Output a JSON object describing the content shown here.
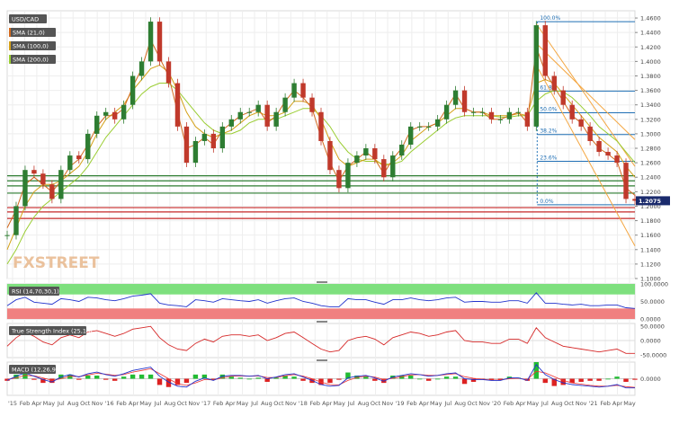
{
  "chart_data": {
    "type": "line",
    "symbol": "USD/CAD",
    "last_price": "1.2075",
    "x_labels": [
      "'15",
      "Feb",
      "Apr",
      "May",
      "Jul",
      "Aug",
      "Oct",
      "Nov",
      "'16",
      "Feb",
      "Apr",
      "May",
      "Jul",
      "Aug",
      "Oct",
      "Nov",
      "'17",
      "Feb",
      "Apr",
      "May",
      "Jul",
      "Aug",
      "Oct",
      "Nov",
      "'18",
      "Feb",
      "Apr",
      "May",
      "Jul",
      "Aug",
      "Oct",
      "Nov",
      "'19",
      "Feb",
      "Apr",
      "May",
      "Jul",
      "Aug",
      "Oct",
      "Nov",
      "'20",
      "Feb",
      "Apr",
      "May",
      "Jul",
      "Aug",
      "Oct",
      "Nov",
      "'21",
      "Feb",
      "Apr",
      "May"
    ],
    "main_panel": {
      "y_ticks": [
        "1.4600",
        "1.4400",
        "1.4200",
        "1.4000",
        "1.3800",
        "1.3600",
        "1.3400",
        "1.3200",
        "1.3000",
        "1.2800",
        "1.2600",
        "1.2400",
        "1.2200",
        "1.2000",
        "1.1800",
        "1.1600",
        "1.1400",
        "1.1200",
        "1.1000"
      ],
      "ylim": [
        1.1,
        1.47
      ],
      "legend": [
        {
          "label": "SMA (21,0)",
          "color": "#d2691e"
        },
        {
          "label": "SMA (100,0)",
          "color": "#d4a017"
        },
        {
          "label": "SMA (200,0)",
          "color": "#9acd32"
        }
      ],
      "watermark": "FXSTREET",
      "fib_levels": [
        {
          "label": "100.0%",
          "value": 1.455
        },
        {
          "label": "61.8%",
          "value": 1.359
        },
        {
          "label": "50.0%",
          "value": 1.329
        },
        {
          "label": "38.2%",
          "value": 1.299
        },
        {
          "label": "23.6%",
          "value": 1.262
        },
        {
          "label": "0.0%",
          "value": 1.202
        }
      ],
      "horizontal_levels": [
        {
          "value": 1.242,
          "color": "#2e7d32"
        },
        {
          "value": 1.235,
          "color": "#2e7d32"
        },
        {
          "value": 1.228,
          "color": "#2e7d32"
        },
        {
          "value": 1.218,
          "color": "#2e7d32"
        },
        {
          "value": 1.198,
          "color": "#c62828"
        },
        {
          "value": 1.192,
          "color": "#c62828"
        },
        {
          "value": 1.183,
          "color": "#c62828"
        }
      ],
      "close": [
        1.16,
        1.2,
        1.25,
        1.245,
        1.23,
        1.21,
        1.25,
        1.27,
        1.265,
        1.3,
        1.325,
        1.33,
        1.32,
        1.34,
        1.38,
        1.4,
        1.455,
        1.4,
        1.37,
        1.31,
        1.26,
        1.29,
        1.3,
        1.28,
        1.31,
        1.32,
        1.33,
        1.33,
        1.34,
        1.31,
        1.33,
        1.35,
        1.37,
        1.35,
        1.33,
        1.29,
        1.25,
        1.225,
        1.26,
        1.27,
        1.28,
        1.265,
        1.24,
        1.27,
        1.285,
        1.31,
        1.31,
        1.31,
        1.32,
        1.34,
        1.36,
        1.33,
        1.33,
        1.33,
        1.32,
        1.32,
        1.33,
        1.33,
        1.31,
        1.45,
        1.38,
        1.36,
        1.34,
        1.32,
        1.31,
        1.29,
        1.275,
        1.27,
        1.26,
        1.21,
        1.2075
      ],
      "sma21": [
        1.17,
        1.195,
        1.23,
        1.24,
        1.23,
        1.22,
        1.235,
        1.255,
        1.265,
        1.285,
        1.31,
        1.325,
        1.325,
        1.335,
        1.365,
        1.39,
        1.43,
        1.405,
        1.38,
        1.33,
        1.28,
        1.285,
        1.295,
        1.285,
        1.305,
        1.315,
        1.325,
        1.33,
        1.335,
        1.315,
        1.325,
        1.345,
        1.36,
        1.35,
        1.335,
        1.295,
        1.26,
        1.235,
        1.255,
        1.265,
        1.275,
        1.265,
        1.245,
        1.265,
        1.28,
        1.305,
        1.31,
        1.31,
        1.315,
        1.335,
        1.355,
        1.335,
        1.33,
        1.33,
        1.32,
        1.32,
        1.325,
        1.33,
        1.315,
        1.42,
        1.385,
        1.365,
        1.345,
        1.325,
        1.315,
        1.295,
        1.28,
        1.272,
        1.262,
        1.225,
        1.215
      ],
      "sma100": [
        1.14,
        1.17,
        1.2,
        1.22,
        1.23,
        1.23,
        1.235,
        1.245,
        1.255,
        1.275,
        1.3,
        1.32,
        1.33,
        1.34,
        1.36,
        1.375,
        1.39,
        1.395,
        1.385,
        1.36,
        1.33,
        1.31,
        1.3,
        1.295,
        1.3,
        1.305,
        1.315,
        1.325,
        1.33,
        1.325,
        1.325,
        1.33,
        1.345,
        1.345,
        1.34,
        1.32,
        1.29,
        1.265,
        1.255,
        1.26,
        1.265,
        1.265,
        1.255,
        1.26,
        1.27,
        1.29,
        1.3,
        1.31,
        1.315,
        1.325,
        1.335,
        1.335,
        1.33,
        1.33,
        1.325,
        1.325,
        1.325,
        1.328,
        1.325,
        1.37,
        1.375,
        1.37,
        1.355,
        1.34,
        1.325,
        1.31,
        1.295,
        1.285,
        1.275,
        1.255,
        1.24
      ],
      "sma200": [
        1.12,
        1.14,
        1.165,
        1.185,
        1.2,
        1.21,
        1.22,
        1.23,
        1.24,
        1.255,
        1.275,
        1.295,
        1.31,
        1.325,
        1.34,
        1.355,
        1.365,
        1.37,
        1.37,
        1.36,
        1.345,
        1.33,
        1.315,
        1.305,
        1.3,
        1.3,
        1.305,
        1.315,
        1.32,
        1.32,
        1.32,
        1.325,
        1.33,
        1.335,
        1.335,
        1.325,
        1.31,
        1.29,
        1.275,
        1.265,
        1.262,
        1.262,
        1.258,
        1.258,
        1.262,
        1.275,
        1.285,
        1.295,
        1.305,
        1.315,
        1.322,
        1.325,
        1.325,
        1.325,
        1.325,
        1.323,
        1.323,
        1.325,
        1.325,
        1.345,
        1.355,
        1.36,
        1.358,
        1.35,
        1.338,
        1.325,
        1.31,
        1.3,
        1.29,
        1.275,
        1.26
      ]
    },
    "rsi_panel": {
      "label": "RSI (14,70,30,1)",
      "y_ticks": [
        "100.0000",
        "50.0000",
        "0.0000"
      ],
      "ylim": [
        0,
        100
      ],
      "overbought": 70,
      "oversold": 30,
      "values": [
        38,
        55,
        62,
        48,
        45,
        42,
        58,
        55,
        50,
        62,
        60,
        55,
        52,
        58,
        65,
        68,
        72,
        45,
        40,
        38,
        35,
        55,
        52,
        48,
        58,
        55,
        52,
        50,
        55,
        45,
        52,
        58,
        60,
        50,
        45,
        38,
        35,
        35,
        58,
        55,
        55,
        48,
        42,
        55,
        55,
        60,
        55,
        52,
        55,
        60,
        62,
        48,
        50,
        50,
        48,
        48,
        52,
        52,
        45,
        75,
        45,
        45,
        42,
        40,
        42,
        38,
        38,
        40,
        40,
        32,
        30
      ]
    },
    "tsi_panel": {
      "label": "True Strength Index (25,13)",
      "y_ticks": [
        "50.0000",
        "0.0000",
        "-50.0000"
      ],
      "ylim": [
        -60,
        60
      ],
      "values": [
        -20,
        10,
        30,
        15,
        -5,
        -15,
        10,
        20,
        10,
        30,
        35,
        25,
        15,
        25,
        40,
        45,
        50,
        10,
        -15,
        -30,
        -35,
        -10,
        5,
        -5,
        15,
        20,
        20,
        15,
        20,
        0,
        10,
        25,
        30,
        10,
        -10,
        -30,
        -40,
        -35,
        0,
        10,
        15,
        5,
        -15,
        10,
        20,
        30,
        25,
        15,
        20,
        30,
        35,
        0,
        -5,
        -5,
        -10,
        -10,
        5,
        5,
        -10,
        45,
        10,
        -5,
        -20,
        -25,
        -30,
        -35,
        -40,
        -35,
        -30,
        -45,
        -45
      ]
    },
    "macd_panel": {
      "label": "MACD (12,26,9)",
      "y_ticks": [
        "0.0000"
      ],
      "ylim": [
        -0.04,
        0.04
      ],
      "macd": [
        -0.004,
        0.006,
        0.014,
        0.006,
        -0.002,
        -0.008,
        0.004,
        0.01,
        0.004,
        0.012,
        0.016,
        0.01,
        0.006,
        0.012,
        0.02,
        0.024,
        0.028,
        0.006,
        -0.008,
        -0.018,
        -0.02,
        -0.006,
        0.002,
        -0.004,
        0.006,
        0.008,
        0.008,
        0.006,
        0.008,
        0.0,
        0.004,
        0.01,
        0.012,
        0.004,
        -0.004,
        -0.014,
        -0.018,
        -0.016,
        0.002,
        0.006,
        0.008,
        0.002,
        -0.006,
        0.004,
        0.008,
        0.012,
        0.01,
        0.006,
        0.008,
        0.012,
        0.014,
        0.0,
        -0.002,
        -0.002,
        -0.004,
        -0.004,
        0.002,
        0.002,
        -0.004,
        0.034,
        0.01,
        -0.002,
        -0.01,
        -0.014,
        -0.016,
        -0.018,
        -0.02,
        -0.018,
        -0.014,
        -0.022,
        -0.022
      ],
      "signal": [
        -0.002,
        0.002,
        0.008,
        0.007,
        0.002,
        -0.004,
        0.0,
        0.006,
        0.005,
        0.009,
        0.013,
        0.011,
        0.008,
        0.01,
        0.016,
        0.02,
        0.024,
        0.012,
        0.0,
        -0.012,
        -0.016,
        -0.01,
        -0.002,
        -0.003,
        0.002,
        0.006,
        0.007,
        0.006,
        0.007,
        0.003,
        0.003,
        0.007,
        0.01,
        0.006,
        0.0,
        -0.008,
        -0.014,
        -0.015,
        -0.004,
        0.003,
        0.006,
        0.004,
        -0.002,
        0.001,
        0.005,
        0.009,
        0.01,
        0.008,
        0.008,
        0.01,
        0.012,
        0.005,
        0.001,
        -0.001,
        -0.003,
        -0.003,
        0.0,
        0.001,
        -0.002,
        0.018,
        0.014,
        0.005,
        -0.004,
        -0.01,
        -0.013,
        -0.016,
        -0.018,
        -0.018,
        -0.016,
        -0.019,
        -0.021
      ]
    }
  }
}
